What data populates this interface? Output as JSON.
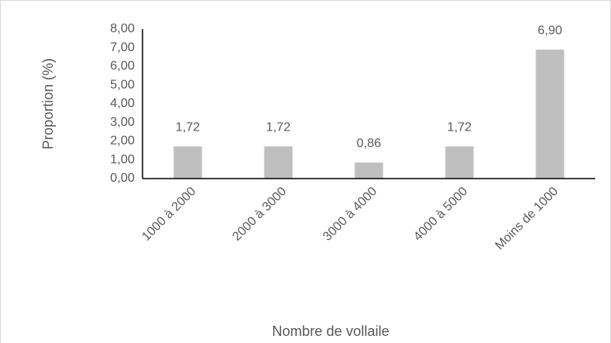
{
  "chart_data": {
    "type": "bar",
    "categories": [
      "1000 à 2000",
      "2000 à 3000",
      "3000 à 4000",
      "4000 à 5000",
      "Moins de 1000"
    ],
    "values": [
      1.72,
      1.72,
      0.86,
      1.72,
      6.9
    ],
    "value_labels": [
      "1,72",
      "1,72",
      "0,86",
      "1,72",
      "6,90"
    ],
    "color": "#bfbfbf",
    "x_label": "Nombre de vollaile",
    "y_label": "Proportion (%)",
    "ylim": [
      0,
      8
    ],
    "yticks": [
      {
        "value": 0,
        "label": "0,00"
      },
      {
        "value": 1,
        "label": "1,00"
      },
      {
        "value": 2,
        "label": "2,00"
      },
      {
        "value": 3,
        "label": "3,00"
      },
      {
        "value": 4,
        "label": "4,00"
      },
      {
        "value": 5,
        "label": "5,00"
      },
      {
        "value": 6,
        "label": "6,00"
      },
      {
        "value": 7,
        "label": "7,00"
      },
      {
        "value": 8,
        "label": "8,00"
      }
    ],
    "grid": false
  }
}
